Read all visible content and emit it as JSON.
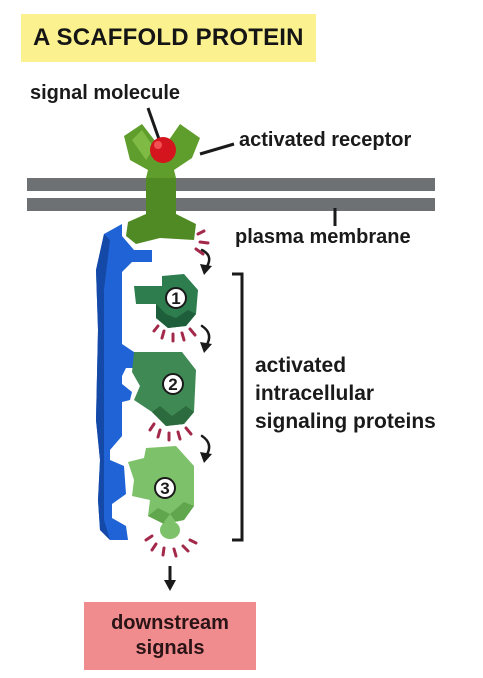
{
  "title": "A SCAFFOLD PROTEIN",
  "labels": {
    "signal_molecule": "signal molecule",
    "activated_receptor": "activated receptor",
    "plasma_membrane": "plasma membrane",
    "activated_proteins": [
      "activated",
      "intracellular",
      "signaling proteins"
    ],
    "downstream": [
      "downstream",
      "signals"
    ]
  },
  "proteins": [
    {
      "number": "1",
      "color": "#2e7d4f"
    },
    {
      "number": "2",
      "color": "#3f8a54"
    },
    {
      "number": "3",
      "color": "#7dc26a"
    }
  ],
  "colors": {
    "title_background": "#fbf28f",
    "membrane": "#6e7173",
    "receptor": "#4f8a24",
    "signal_molecule": "#d4151e",
    "scaffold": "#1f63d6",
    "activation_marks": "#a3294a",
    "downstream_box": "#f08b8e"
  },
  "icons": [
    "curved-arrow-icon",
    "down-arrow-icon",
    "bracket"
  ]
}
